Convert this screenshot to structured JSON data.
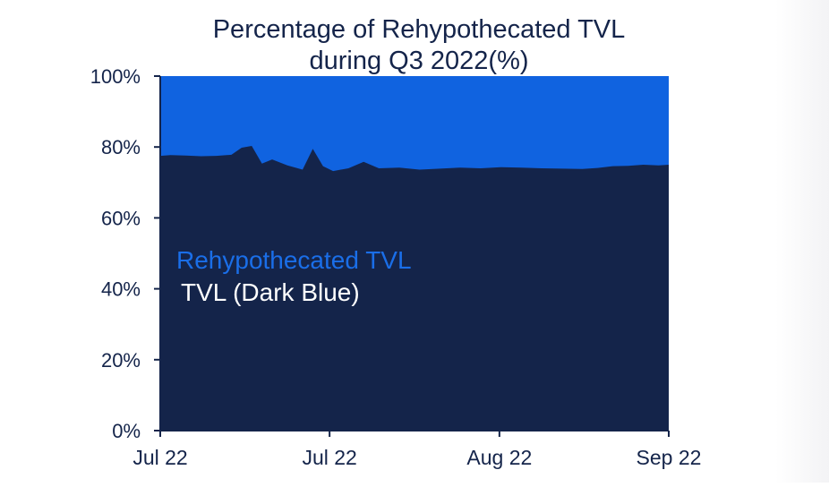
{
  "chart_data": {
    "type": "area",
    "title": "Percentage of Rehypothecated TVL",
    "subtitle": "during Q3 2022(%)",
    "xlabel": "",
    "ylabel": "",
    "ylim": [
      0,
      100
    ],
    "y_ticks": [
      0,
      20,
      40,
      60,
      80,
      100
    ],
    "y_tick_labels": [
      "0%",
      "20%",
      "40%",
      "60%",
      "80%",
      "100%"
    ],
    "x_ticks": [
      0,
      0.333,
      0.667,
      1.0
    ],
    "x_tick_labels": [
      "Jul 22",
      "Jul 22",
      "Aug 22",
      "Sep 22"
    ],
    "x_range": [
      0,
      1
    ],
    "grid": false,
    "legend_placement": "center-left, inside plot",
    "series": [
      {
        "name": "Rehypothecated TVL",
        "color": "#1063e0",
        "stack_top": 100
      },
      {
        "name": "TVL (Dark Blue)",
        "color": "#14244a",
        "x": [
          0.0,
          0.02,
          0.05,
          0.08,
          0.11,
          0.14,
          0.16,
          0.18,
          0.2,
          0.22,
          0.25,
          0.28,
          0.3,
          0.32,
          0.34,
          0.37,
          0.4,
          0.43,
          0.47,
          0.51,
          0.55,
          0.59,
          0.63,
          0.67,
          0.71,
          0.75,
          0.79,
          0.83,
          0.86,
          0.89,
          0.92,
          0.95,
          0.98,
          1.0
        ],
        "values": [
          77.5,
          77.7,
          77.6,
          77.4,
          77.5,
          77.8,
          79.8,
          80.3,
          75.3,
          76.5,
          74.8,
          73.6,
          79.5,
          74.6,
          73.2,
          74.0,
          75.8,
          74.0,
          74.2,
          73.6,
          73.9,
          74.2,
          74.0,
          74.3,
          74.2,
          74.0,
          73.9,
          73.8,
          74.1,
          74.6,
          74.7,
          75.0,
          74.8,
          75.0
        ]
      }
    ]
  }
}
